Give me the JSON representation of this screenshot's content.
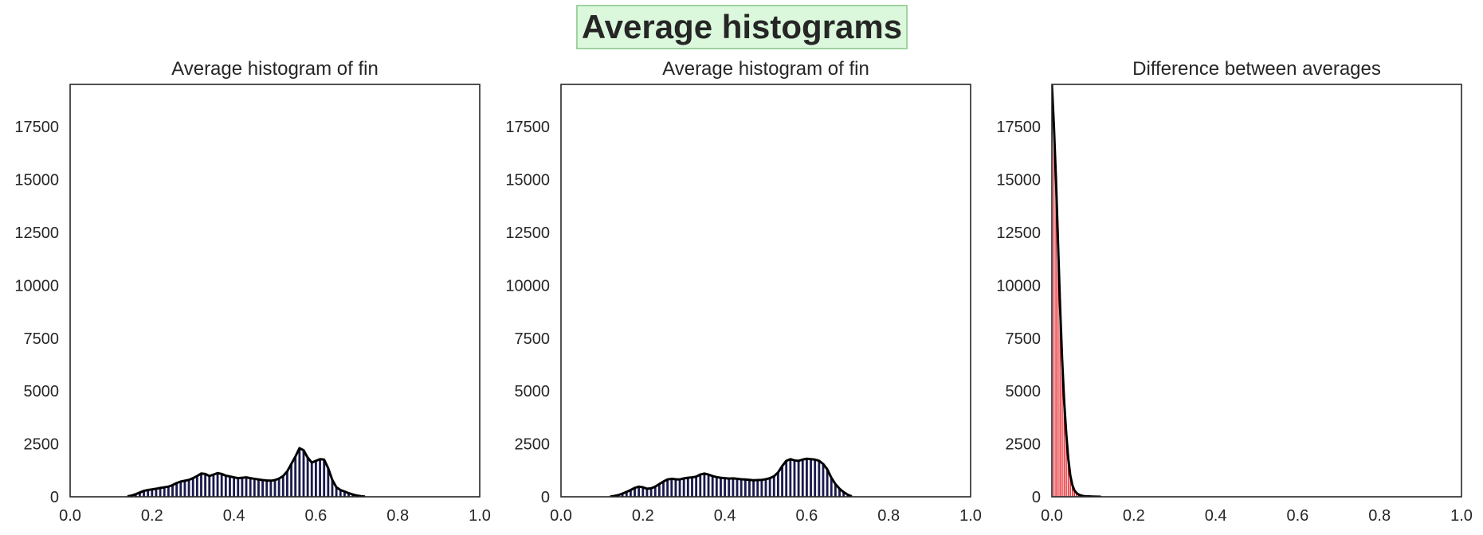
{
  "figure": {
    "suptitle": "Average histograms"
  },
  "chart_data": [
    {
      "type": "bar",
      "title": "Average histogram of fin",
      "xlabel": "",
      "ylabel": "",
      "xlim": [
        0.0,
        1.0
      ],
      "ylim": [
        0,
        19500
      ],
      "xticks": [
        "0.0",
        "0.2",
        "0.4",
        "0.6",
        "0.8",
        "1.0"
      ],
      "yticks": [
        "0",
        "2500",
        "5000",
        "7500",
        "10000",
        "12500",
        "15000",
        "17500"
      ],
      "grid": false,
      "bar_color": "#1a1a4d",
      "line_color": "#000000",
      "series": [
        {
          "x": [
            0.14,
            0.15,
            0.16,
            0.17,
            0.18,
            0.19,
            0.2,
            0.21,
            0.22,
            0.23,
            0.24,
            0.25,
            0.26,
            0.27,
            0.28,
            0.29,
            0.3,
            0.31,
            0.32,
            0.33,
            0.34,
            0.35,
            0.36,
            0.37,
            0.38,
            0.39,
            0.4,
            0.41,
            0.42,
            0.43,
            0.44,
            0.45,
            0.46,
            0.47,
            0.48,
            0.49,
            0.5,
            0.51,
            0.52,
            0.53,
            0.54,
            0.55,
            0.56,
            0.57,
            0.58,
            0.59,
            0.6,
            0.61,
            0.62,
            0.63,
            0.64,
            0.65,
            0.66,
            0.67,
            0.68,
            0.69,
            0.7,
            0.71,
            0.72
          ],
          "values": [
            20,
            60,
            120,
            200,
            280,
            320,
            350,
            380,
            420,
            450,
            480,
            550,
            650,
            720,
            760,
            800,
            880,
            980,
            1100,
            1080,
            980,
            1050,
            1120,
            1080,
            1000,
            960,
            920,
            880,
            900,
            920,
            880,
            850,
            820,
            790,
            770,
            760,
            790,
            860,
            980,
            1200,
            1550,
            1900,
            2300,
            2200,
            1850,
            1620,
            1700,
            1780,
            1760,
            1350,
            800,
            450,
            320,
            250,
            170,
            110,
            60,
            30,
            10
          ]
        }
      ]
    },
    {
      "type": "bar",
      "title": "Average histogram of fin",
      "xlabel": "",
      "ylabel": "",
      "xlim": [
        0.0,
        1.0
      ],
      "ylim": [
        0,
        19500
      ],
      "xticks": [
        "0.0",
        "0.2",
        "0.4",
        "0.6",
        "0.8",
        "1.0"
      ],
      "yticks": [
        "0",
        "2500",
        "5000",
        "7500",
        "10000",
        "12500",
        "15000",
        "17500"
      ],
      "grid": false,
      "bar_color": "#1a1a4d",
      "line_color": "#000000",
      "series": [
        {
          "x": [
            0.12,
            0.13,
            0.14,
            0.15,
            0.16,
            0.17,
            0.18,
            0.19,
            0.2,
            0.21,
            0.22,
            0.23,
            0.24,
            0.25,
            0.26,
            0.27,
            0.28,
            0.29,
            0.3,
            0.31,
            0.32,
            0.33,
            0.34,
            0.35,
            0.36,
            0.37,
            0.38,
            0.39,
            0.4,
            0.41,
            0.42,
            0.43,
            0.44,
            0.45,
            0.46,
            0.47,
            0.48,
            0.49,
            0.5,
            0.51,
            0.52,
            0.53,
            0.54,
            0.55,
            0.56,
            0.57,
            0.58,
            0.59,
            0.6,
            0.61,
            0.62,
            0.63,
            0.64,
            0.65,
            0.66,
            0.67,
            0.68,
            0.69,
            0.7,
            0.71
          ],
          "values": [
            10,
            40,
            80,
            150,
            230,
            320,
            420,
            480,
            450,
            380,
            400,
            480,
            600,
            720,
            820,
            850,
            830,
            820,
            870,
            900,
            920,
            950,
            1050,
            1100,
            1050,
            980,
            930,
            900,
            880,
            860,
            870,
            850,
            830,
            820,
            800,
            780,
            790,
            800,
            830,
            880,
            970,
            1150,
            1450,
            1700,
            1780,
            1720,
            1700,
            1760,
            1800,
            1780,
            1760,
            1700,
            1550,
            1300,
            900,
            600,
            380,
            220,
            100,
            20
          ]
        }
      ]
    },
    {
      "type": "bar",
      "title": "Difference between averages",
      "xlabel": "",
      "ylabel": "",
      "xlim": [
        0.0,
        1.0
      ],
      "ylim": [
        0,
        19500
      ],
      "xticks": [
        "0.0",
        "0.2",
        "0.4",
        "0.6",
        "0.8",
        "1.0"
      ],
      "yticks": [
        "0",
        "2500",
        "5000",
        "7500",
        "10000",
        "12500",
        "15000",
        "17500"
      ],
      "grid": false,
      "bar_color": "#e8262c",
      "line_color": "#000000",
      "series": [
        {
          "x": [
            0.0,
            0.005,
            0.01,
            0.015,
            0.02,
            0.025,
            0.03,
            0.035,
            0.04,
            0.045,
            0.05,
            0.055,
            0.06,
            0.065,
            0.07,
            0.075,
            0.08,
            0.09,
            0.1,
            0.11,
            0.12
          ],
          "values": [
            19500,
            17500,
            15000,
            12000,
            9000,
            6500,
            4500,
            3000,
            1800,
            1000,
            550,
            300,
            180,
            110,
            70,
            45,
            30,
            18,
            10,
            5,
            2
          ]
        }
      ]
    }
  ]
}
